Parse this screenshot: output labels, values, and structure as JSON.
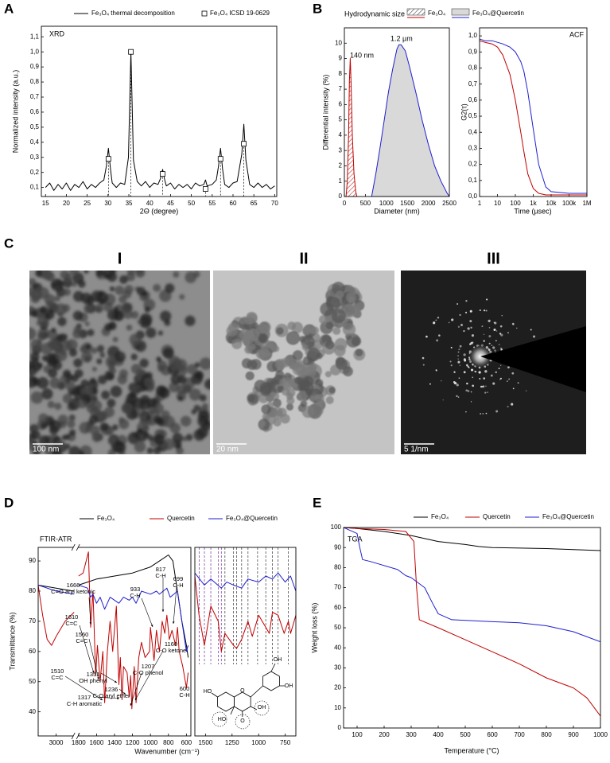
{
  "chart_data": [
    {
      "type": "line",
      "panel": "A",
      "title": "XRD",
      "xlabel": "2Θ (degree)",
      "ylabel": "Normalized intensity (a.u.)",
      "xlim": [
        14,
        70.5
      ],
      "ylim": [
        0.04,
        1.17
      ],
      "xticks": [
        15,
        20,
        25,
        30,
        35,
        40,
        45,
        50,
        55,
        60,
        65,
        70
      ],
      "yticks": [
        {
          "value": 0.1,
          "label": "0,1"
        },
        {
          "value": 0.2,
          "label": "0,2"
        },
        {
          "value": 0.3,
          "label": "0,3"
        },
        {
          "value": 0.4,
          "label": "0,4"
        },
        {
          "value": 0.5,
          "label": "0,5"
        },
        {
          "value": 0.6,
          "label": "0,6"
        },
        {
          "value": 0.7,
          "label": "0,7"
        },
        {
          "value": 0.8,
          "label": "0,8"
        },
        {
          "value": 0.9,
          "label": "0,9"
        },
        {
          "value": 1.0,
          "label": "1,0"
        },
        {
          "value": 1.1,
          "label": "1,1"
        }
      ],
      "series": [
        {
          "name": "Fe₃O₄ thermal decomposition",
          "color": "#000000",
          "x": [
            15,
            16,
            17,
            18,
            19,
            20,
            21,
            22,
            23,
            24,
            25,
            26,
            27,
            28,
            29,
            29.6,
            30.1,
            30.6,
            31,
            32,
            33,
            34,
            34.9,
            35.5,
            36.1,
            37,
            38,
            39,
            40,
            41,
            42,
            42.6,
            43.1,
            43.6,
            44,
            45,
            46,
            47,
            48,
            49,
            50,
            51,
            52,
            53,
            53.4,
            53.8,
            55,
            56,
            56.5,
            57,
            57.5,
            58,
            59,
            60,
            61,
            62.1,
            62.6,
            63.1,
            64,
            65,
            66,
            67,
            68,
            69,
            70
          ],
          "values": [
            0.1,
            0.13,
            0.08,
            0.12,
            0.09,
            0.13,
            0.08,
            0.12,
            0.1,
            0.14,
            0.09,
            0.12,
            0.1,
            0.13,
            0.15,
            0.24,
            0.36,
            0.22,
            0.13,
            0.1,
            0.13,
            0.12,
            0.3,
            1.0,
            0.28,
            0.14,
            0.11,
            0.14,
            0.1,
            0.13,
            0.12,
            0.16,
            0.22,
            0.15,
            0.11,
            0.13,
            0.09,
            0.12,
            0.1,
            0.12,
            0.09,
            0.13,
            0.11,
            0.12,
            0.15,
            0.11,
            0.12,
            0.15,
            0.24,
            0.36,
            0.22,
            0.12,
            0.1,
            0.13,
            0.14,
            0.32,
            0.52,
            0.28,
            0.12,
            0.1,
            0.13,
            0.1,
            0.12,
            0.09,
            0.11
          ]
        },
        {
          "name": "Fe₃O₄ ICSD 19-0629",
          "color": "#000000",
          "marker": "square",
          "stems": true,
          "x": [
            30.1,
            35.5,
            43.1,
            53.4,
            57.0,
            62.6
          ],
          "values": [
            0.29,
            1.0,
            0.19,
            0.09,
            0.29,
            0.39
          ]
        }
      ]
    },
    {
      "type": "area",
      "panel": "B",
      "title": "Hydrodynamic size",
      "xlabel": "Diameter (nm)",
      "ylabel": "Differential intensity (%)",
      "xlim": [
        0,
        2500
      ],
      "ylim": [
        0,
        11
      ],
      "xticks": [
        0,
        500,
        1000,
        1500,
        2000,
        2500
      ],
      "yticks": [
        0,
        1,
        2,
        3,
        4,
        5,
        6,
        7,
        8,
        9,
        10
      ],
      "series": [
        {
          "name": "Fe₃O₄",
          "color": "#c00000",
          "fill": "hatch",
          "x": [
            40,
            70,
            100,
            120,
            140,
            160,
            190,
            230,
            270,
            300
          ],
          "values": [
            0,
            1,
            4,
            7.5,
            9,
            7.5,
            4,
            1.5,
            0.3,
            0
          ]
        },
        {
          "name": "Fe₃O₄@Quercetin",
          "color": "#1f1fd0",
          "fill": "#d9d9d9",
          "x": [
            650,
            750,
            850,
            950,
            1050,
            1150,
            1250,
            1300,
            1350,
            1450,
            1550,
            1700,
            1850,
            2000,
            2150,
            2300,
            2450,
            2500
          ],
          "values": [
            0,
            1.5,
            3.2,
            5,
            6.8,
            8.3,
            9.6,
            9.9,
            9.9,
            9.5,
            8.5,
            6.8,
            5,
            3.4,
            2,
            1,
            0.2,
            0
          ]
        }
      ],
      "annotations": [
        {
          "text": "140 nm",
          "color": "#c00000"
        },
        {
          "text": "1.2 µm",
          "color": "#1f1fd0"
        }
      ]
    },
    {
      "type": "line",
      "title": "ACF",
      "xlabel": "Time (µsec)",
      "ylabel": "G2(τ)",
      "xscale": "log",
      "xlim": [
        1,
        1000000
      ],
      "ylim": [
        0,
        1.05
      ],
      "xticks": [
        1,
        10,
        100,
        {
          "value": 1000,
          "label": "1k"
        },
        {
          "value": 10000,
          "label": "10k"
        },
        {
          "value": 100000,
          "label": "100k"
        },
        {
          "value": 1000000,
          "label": "1M"
        }
      ],
      "yticks": [
        {
          "value": 0,
          "label": "0,0"
        },
        {
          "value": 0.1,
          "label": "0,1"
        },
        {
          "value": 0.2,
          "label": "0,2"
        },
        {
          "value": 0.3,
          "label": "0,3"
        },
        {
          "value": 0.4,
          "label": "0,4"
        },
        {
          "value": 0.5,
          "label": "0,5"
        },
        {
          "value": 0.6,
          "label": "0,6"
        },
        {
          "value": 0.7,
          "label": "0,7"
        },
        {
          "value": 0.8,
          "label": "0,8"
        },
        {
          "value": 0.9,
          "label": "0,9"
        },
        {
          "value": 1.0,
          "label": "1,0"
        }
      ],
      "series": [
        {
          "color": "#c00000",
          "x": [
            1,
            2,
            5,
            10,
            20,
            50,
            100,
            200,
            300,
            500,
            1000,
            2000,
            5000,
            10000,
            100000,
            1000000
          ],
          "values": [
            0.97,
            0.96,
            0.95,
            0.93,
            0.88,
            0.76,
            0.6,
            0.4,
            0.28,
            0.14,
            0.05,
            0.02,
            0.01,
            0.01,
            0.01,
            0.01
          ]
        },
        {
          "color": "#1f1fd0",
          "x": [
            1,
            2,
            5,
            10,
            20,
            50,
            100,
            200,
            300,
            500,
            1000,
            2000,
            5000,
            10000,
            100000,
            1000000
          ],
          "values": [
            0.98,
            0.97,
            0.97,
            0.96,
            0.95,
            0.93,
            0.9,
            0.84,
            0.78,
            0.65,
            0.42,
            0.2,
            0.06,
            0.03,
            0.02,
            0.02
          ]
        }
      ]
    },
    {
      "type": "line",
      "panel": "D",
      "title": "FTIR-ATR",
      "xlabel": "Wavenumber (cm⁻¹)",
      "ylabel": "Transmittance (%)",
      "xlim": [
        3200,
        550
      ],
      "xbreak": [
        2800,
        1850
      ],
      "ylim": [
        32,
        94.5
      ],
      "xticks": [
        3000,
        1800,
        1600,
        1400,
        1200,
        1000,
        800,
        600
      ],
      "yticks": [
        40,
        50,
        60,
        70,
        80,
        90
      ],
      "series": [
        {
          "name": "Fe₃O₄",
          "color": "#000000",
          "x": [
            3200,
            3000,
            2800,
            2300,
            1800,
            1700,
            1600,
            1400,
            1200,
            1000,
            900,
            800,
            750,
            700,
            650,
            600,
            580
          ],
          "values": [
            82,
            81,
            80,
            null,
            82,
            83,
            84,
            85,
            86,
            88,
            90,
            92,
            90,
            80,
            70,
            62,
            58
          ]
        },
        {
          "name": "Quercetin",
          "color": "#c00000",
          "x": [
            3200,
            3150,
            3100,
            3050,
            3000,
            2900,
            2800,
            2300,
            1800,
            1750,
            1690,
            1666,
            1640,
            1610,
            1590,
            1560,
            1530,
            1510,
            1480,
            1450,
            1420,
            1380,
            1351,
            1335,
            1317,
            1300,
            1260,
            1236,
            1220,
            1207,
            1180,
            1160,
            1130,
            1100,
            1060,
            1010,
            1000,
            960,
            933,
            900,
            870,
            840,
            817,
            790,
            760,
            720,
            699,
            680,
            640,
            600,
            580
          ],
          "values": [
            82,
            72,
            64,
            62,
            65,
            70,
            73,
            null,
            85,
            86,
            93,
            68,
            80,
            52,
            62,
            50,
            60,
            43,
            60,
            70,
            60,
            75,
            49,
            58,
            44,
            55,
            53,
            45,
            52,
            41,
            55,
            43,
            58,
            63,
            58,
            60,
            68,
            57,
            67,
            60,
            70,
            66,
            72,
            64,
            67,
            62,
            68,
            60,
            55,
            48,
            53
          ]
        },
        {
          "name": "Fe₃O₄@Quercetin",
          "color": "#1f1fd0",
          "x": [
            3200,
            3000,
            2800,
            2300,
            1800,
            1700,
            1666,
            1640,
            1600,
            1560,
            1510,
            1450,
            1351,
            1300,
            1236,
            1200,
            1160,
            1100,
            1000,
            933,
            900,
            817,
            780,
            699,
            650,
            600,
            580
          ],
          "values": [
            82,
            80,
            79,
            null,
            82,
            81,
            78,
            79,
            76,
            78,
            74,
            78,
            76,
            78,
            77,
            78,
            76,
            80,
            79,
            80,
            79,
            81,
            78,
            80,
            70,
            60,
            62
          ]
        }
      ],
      "annotations": [
        {
          "label": "1666",
          "text": "C=O aryl ketonic"
        },
        {
          "label": "1610",
          "text": "C=C"
        },
        {
          "label": "1560",
          "text": "C=C"
        },
        {
          "label": "1510",
          "text": "C=C"
        },
        {
          "label": "1351",
          "text": "OH phenyl"
        },
        {
          "label": "1317",
          "text": "C-H aromatic"
        },
        {
          "label": "1236",
          "text": "C-O aryl ether"
        },
        {
          "label": "1207",
          "text": "C-O phenol"
        },
        {
          "label": "1160",
          "text": "C-O ketone"
        },
        {
          "label": "933",
          "text": "C-H"
        },
        {
          "label": "817",
          "text": "C-H"
        },
        {
          "label": "699",
          "text": "C-H"
        },
        {
          "label": "600",
          "text": "C-H"
        }
      ]
    },
    {
      "type": "line",
      "xlim": [
        1600,
        650
      ],
      "ylim": [
        32,
        94.5
      ],
      "xticks": [
        1500,
        1250,
        1000,
        750
      ],
      "xlines": [
        1560,
        1510,
        1450,
        1380,
        1351,
        1317,
        1236,
        1207,
        1160,
        1100,
        1010,
        933,
        870,
        817,
        720
      ],
      "xline_color": "#7030a0",
      "series": [
        {
          "color": "#c00000",
          "x": [
            1600,
            1560,
            1510,
            1450,
            1380,
            1351,
            1317,
            1236,
            1207,
            1160,
            1100,
            1060,
            1000,
            933,
            900,
            870,
            817,
            760,
            720,
            699,
            650
          ],
          "values": [
            85,
            72,
            62,
            75,
            70,
            60,
            66,
            62,
            61,
            64,
            70,
            65,
            72,
            68,
            66,
            73,
            72,
            66,
            70,
            66,
            72
          ]
        },
        {
          "color": "#1f1fd0",
          "x": [
            1600,
            1510,
            1450,
            1351,
            1300,
            1236,
            1160,
            1100,
            1000,
            933,
            870,
            817,
            750,
            700,
            650
          ],
          "values": [
            86,
            82,
            84,
            81,
            83,
            82,
            81,
            84,
            83,
            85,
            84,
            86,
            83,
            85,
            80
          ]
        }
      ],
      "structure_labels": [
        "OH",
        "OH",
        "HO",
        "O",
        "OH",
        "O",
        "HO"
      ]
    },
    {
      "type": "line",
      "panel": "E",
      "title": "TGA",
      "xlabel": "Temperature (°C)",
      "ylabel": "Weight loss (%)",
      "xlim": [
        50,
        1000
      ],
      "ylim": [
        0,
        100
      ],
      "xticks": [
        100,
        200,
        300,
        400,
        500,
        600,
        700,
        800,
        900,
        1000
      ],
      "yticks": [
        0,
        10,
        20,
        30,
        40,
        50,
        60,
        70,
        80,
        90,
        100
      ],
      "series": [
        {
          "name": "Fe₃O₄",
          "color": "#000000",
          "x": [
            50,
            100,
            200,
            300,
            400,
            500,
            550,
            600,
            800,
            1000
          ],
          "values": [
            100,
            99.5,
            98,
            96,
            93,
            91.5,
            90.5,
            90,
            89.5,
            88.5
          ]
        },
        {
          "name": "Quercetin",
          "color": "#c00000",
          "x": [
            50,
            100,
            200,
            280,
            310,
            320,
            330,
            400,
            500,
            600,
            700,
            800,
            900,
            950,
            1000
          ],
          "values": [
            100,
            99.5,
            99,
            98,
            93,
            70,
            54,
            50,
            44,
            38,
            32,
            25,
            20,
            15,
            6
          ]
        },
        {
          "name": "Fe₃O₄@Quercetin",
          "color": "#1f1fd0",
          "x": [
            50,
            100,
            110,
            120,
            150,
            250,
            280,
            300,
            350,
            380,
            400,
            450,
            600,
            700,
            800,
            900,
            1000
          ],
          "values": [
            100,
            97,
            90,
            84,
            83,
            79,
            76,
            75,
            70,
            62,
            57,
            54,
            53,
            52.5,
            51,
            48,
            43
          ]
        }
      ]
    }
  ],
  "micrographs": {
    "panel": "C",
    "images": [
      {
        "numeral": "I",
        "scale_bar": "100 nm"
      },
      {
        "numeral": "II",
        "scale_bar": "20 nm"
      },
      {
        "numeral": "III",
        "scale_bar": "5 1/nm"
      }
    ]
  }
}
